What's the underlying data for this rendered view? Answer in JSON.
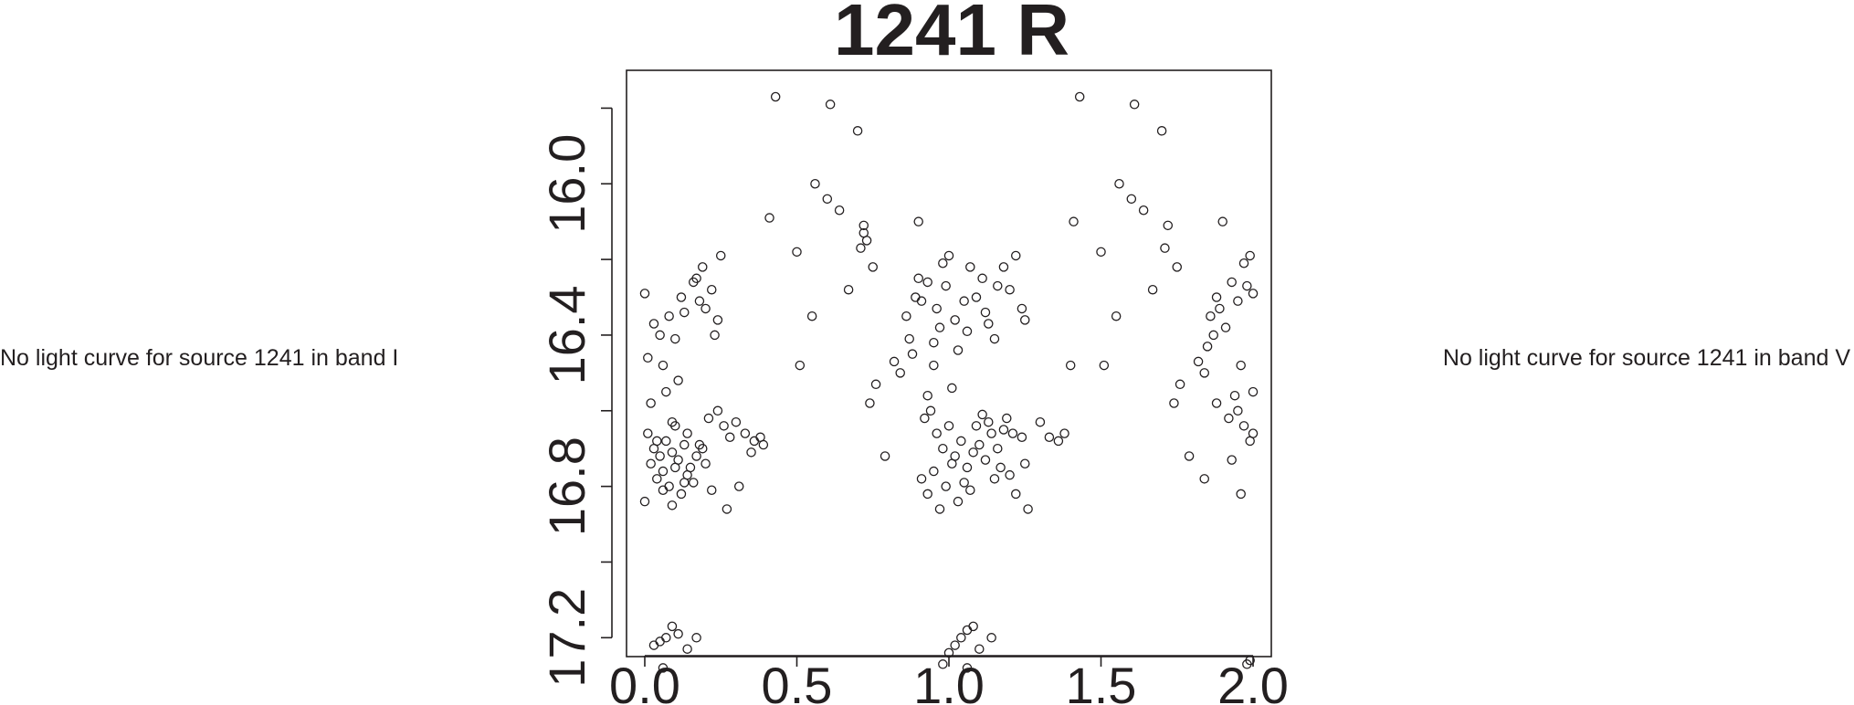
{
  "left_message": "No light curve for source 1241 in band I",
  "right_message": "No light curve for source 1241 in band V",
  "chart_data": {
    "type": "scatter",
    "title": "1241 R",
    "xlabel": "",
    "ylabel": "",
    "xlim": [
      -0.06,
      2.06
    ],
    "ylim": [
      17.25,
      15.7
    ],
    "y_inverted": true,
    "x_ticks": [
      0.0,
      0.5,
      1.0,
      1.5,
      2.0
    ],
    "x_tick_labels": [
      "0.0",
      "0.5",
      "1.0",
      "1.5",
      "2.0"
    ],
    "y_ticks": [
      17.2,
      17.0,
      16.8,
      16.6,
      16.4,
      16.2,
      16.0,
      15.8
    ],
    "y_tick_labels": [
      "17.2",
      "",
      "16.8",
      "",
      "16.4",
      "",
      "16.0",
      ""
    ],
    "marker": "open-circle",
    "grid": false,
    "points": [
      [
        0.0,
        16.29
      ],
      [
        0.03,
        16.37
      ],
      [
        0.06,
        16.48
      ],
      [
        0.1,
        16.41
      ],
      [
        0.13,
        16.34
      ],
      [
        0.16,
        16.26
      ],
      [
        0.19,
        16.22
      ],
      [
        0.22,
        16.28
      ],
      [
        0.25,
        16.19
      ],
      [
        0.01,
        16.46
      ],
      [
        0.05,
        16.4
      ],
      [
        0.08,
        16.35
      ],
      [
        0.12,
        16.3
      ],
      [
        0.17,
        16.25
      ],
      [
        0.2,
        16.33
      ],
      [
        0.24,
        16.36
      ],
      [
        0.02,
        16.58
      ],
      [
        0.07,
        16.55
      ],
      [
        0.11,
        16.52
      ],
      [
        0.18,
        16.31
      ],
      [
        0.23,
        16.4
      ],
      [
        0.04,
        16.68
      ],
      [
        0.09,
        16.63
      ],
      [
        0.14,
        16.66
      ],
      [
        0.21,
        16.62
      ],
      [
        0.26,
        16.64
      ],
      [
        0.3,
        16.63
      ],
      [
        0.33,
        16.66
      ],
      [
        0.36,
        16.68
      ],
      [
        0.38,
        16.67
      ],
      [
        0.01,
        16.66
      ],
      [
        0.03,
        16.7
      ],
      [
        0.05,
        16.72
      ],
      [
        0.07,
        16.68
      ],
      [
        0.09,
        16.71
      ],
      [
        0.11,
        16.73
      ],
      [
        0.13,
        16.69
      ],
      [
        0.15,
        16.75
      ],
      [
        0.17,
        16.72
      ],
      [
        0.02,
        16.74
      ],
      [
        0.04,
        16.78
      ],
      [
        0.06,
        16.76
      ],
      [
        0.08,
        16.8
      ],
      [
        0.1,
        16.75
      ],
      [
        0.12,
        16.82
      ],
      [
        0.14,
        16.77
      ],
      [
        0.16,
        16.79
      ],
      [
        0.19,
        16.7
      ],
      [
        0.06,
        16.81
      ],
      [
        0.09,
        16.85
      ],
      [
        0.13,
        16.79
      ],
      [
        0.2,
        16.74
      ],
      [
        0.22,
        16.81
      ],
      [
        0.27,
        16.86
      ],
      [
        0.31,
        16.8
      ],
      [
        0.39,
        16.69
      ],
      [
        0.1,
        16.64
      ],
      [
        0.18,
        16.69
      ],
      [
        0.24,
        16.6
      ],
      [
        0.28,
        16.67
      ],
      [
        0.35,
        16.71
      ],
      [
        0.0,
        16.84
      ],
      [
        0.03,
        17.22
      ],
      [
        0.05,
        17.21
      ],
      [
        0.07,
        17.2
      ],
      [
        0.09,
        17.17
      ],
      [
        0.11,
        17.19
      ],
      [
        0.14,
        17.23
      ],
      [
        0.17,
        17.2
      ],
      [
        0.06,
        17.28
      ],
      [
        0.41,
        16.09
      ],
      [
        0.43,
        15.77
      ],
      [
        0.5,
        16.18
      ],
      [
        0.51,
        16.48
      ],
      [
        0.55,
        16.35
      ],
      [
        0.56,
        16.0
      ],
      [
        0.6,
        16.04
      ],
      [
        0.61,
        15.79
      ],
      [
        0.64,
        16.07
      ],
      [
        0.67,
        16.28
      ],
      [
        0.7,
        15.86
      ],
      [
        0.71,
        16.17
      ],
      [
        0.72,
        16.11
      ],
      [
        0.72,
        16.13
      ],
      [
        0.73,
        16.15
      ],
      [
        0.74,
        16.58
      ],
      [
        0.75,
        16.22
      ],
      [
        0.76,
        16.53
      ],
      [
        0.79,
        16.72
      ],
      [
        0.82,
        16.47
      ],
      [
        0.84,
        16.5
      ],
      [
        0.86,
        16.35
      ],
      [
        0.87,
        16.41
      ],
      [
        0.89,
        16.3
      ],
      [
        0.9,
        16.25
      ],
      [
        0.92,
        16.62
      ],
      [
        0.95,
        16.42
      ],
      [
        0.88,
        16.45
      ],
      [
        0.91,
        16.31
      ],
      [
        0.93,
        16.26
      ],
      [
        0.96,
        16.33
      ],
      [
        0.98,
        16.21
      ],
      [
        1.0,
        16.19
      ],
      [
        1.02,
        16.36
      ],
      [
        1.05,
        16.31
      ],
      [
        1.07,
        16.22
      ],
      [
        0.93,
        16.56
      ],
      [
        0.95,
        16.48
      ],
      [
        0.97,
        16.38
      ],
      [
        0.99,
        16.27
      ],
      [
        1.01,
        16.54
      ],
      [
        1.03,
        16.44
      ],
      [
        1.06,
        16.39
      ],
      [
        1.09,
        16.3
      ],
      [
        1.11,
        16.25
      ],
      [
        0.9,
        16.1
      ],
      [
        0.94,
        16.6
      ],
      [
        0.96,
        16.66
      ],
      [
        0.98,
        16.7
      ],
      [
        1.0,
        16.64
      ],
      [
        1.02,
        16.72
      ],
      [
        1.04,
        16.68
      ],
      [
        1.06,
        16.75
      ],
      [
        1.08,
        16.71
      ],
      [
        0.91,
        16.78
      ],
      [
        0.93,
        16.82
      ],
      [
        0.95,
        16.76
      ],
      [
        0.97,
        16.86
      ],
      [
        0.99,
        16.8
      ],
      [
        1.01,
        16.74
      ],
      [
        1.03,
        16.84
      ],
      [
        1.05,
        16.79
      ],
      [
        1.07,
        16.81
      ],
      [
        1.1,
        16.69
      ],
      [
        1.12,
        16.73
      ],
      [
        1.14,
        16.66
      ],
      [
        1.16,
        16.7
      ],
      [
        1.18,
        16.65
      ],
      [
        1.2,
        16.77
      ],
      [
        1.22,
        16.82
      ],
      [
        1.24,
        16.67
      ],
      [
        1.26,
        16.86
      ],
      [
        1.09,
        16.64
      ],
      [
        1.11,
        16.61
      ],
      [
        1.13,
        16.63
      ],
      [
        1.15,
        16.78
      ],
      [
        1.17,
        16.75
      ],
      [
        1.19,
        16.62
      ],
      [
        1.21,
        16.66
      ],
      [
        1.25,
        16.74
      ],
      [
        1.3,
        16.63
      ],
      [
        1.13,
        16.37
      ],
      [
        1.16,
        16.27
      ],
      [
        1.18,
        16.22
      ],
      [
        1.2,
        16.28
      ],
      [
        1.22,
        16.19
      ],
      [
        1.24,
        16.33
      ],
      [
        1.25,
        16.36
      ],
      [
        1.15,
        16.41
      ],
      [
        1.12,
        16.34
      ],
      [
        1.33,
        16.67
      ],
      [
        1.36,
        16.68
      ],
      [
        1.38,
        16.66
      ],
      [
        1.4,
        16.48
      ],
      [
        1.41,
        16.1
      ],
      [
        1.43,
        15.77
      ],
      [
        1.5,
        16.18
      ],
      [
        1.51,
        16.48
      ],
      [
        1.55,
        16.35
      ],
      [
        1.56,
        16.0
      ],
      [
        1.6,
        16.04
      ],
      [
        1.61,
        15.79
      ],
      [
        1.64,
        16.07
      ],
      [
        1.67,
        16.28
      ],
      [
        1.7,
        15.86
      ],
      [
        1.71,
        16.17
      ],
      [
        1.72,
        16.11
      ],
      [
        1.74,
        16.58
      ],
      [
        1.75,
        16.22
      ],
      [
        1.76,
        16.53
      ],
      [
        1.79,
        16.72
      ],
      [
        1.82,
        16.47
      ],
      [
        1.84,
        16.5
      ],
      [
        1.86,
        16.35
      ],
      [
        1.88,
        16.3
      ],
      [
        1.9,
        16.1
      ],
      [
        1.92,
        16.62
      ],
      [
        1.85,
        16.43
      ],
      [
        1.87,
        16.4
      ],
      [
        1.89,
        16.33
      ],
      [
        1.91,
        16.38
      ],
      [
        1.93,
        16.26
      ],
      [
        1.95,
        16.31
      ],
      [
        1.97,
        16.21
      ],
      [
        1.99,
        16.19
      ],
      [
        2.0,
        16.29
      ],
      [
        1.94,
        16.56
      ],
      [
        1.96,
        16.48
      ],
      [
        1.98,
        16.27
      ],
      [
        2.0,
        16.55
      ],
      [
        1.95,
        16.6
      ],
      [
        1.97,
        16.64
      ],
      [
        1.99,
        16.68
      ],
      [
        2.0,
        16.66
      ],
      [
        1.96,
        16.82
      ],
      [
        0.98,
        17.27
      ],
      [
        1.0,
        17.24
      ],
      [
        1.02,
        17.22
      ],
      [
        1.04,
        17.2
      ],
      [
        1.06,
        17.18
      ],
      [
        1.08,
        17.17
      ],
      [
        1.1,
        17.23
      ],
      [
        1.14,
        17.2
      ],
      [
        1.06,
        17.28
      ],
      [
        1.99,
        17.26
      ],
      [
        1.98,
        17.27
      ],
      [
        1.93,
        16.73
      ],
      [
        1.88,
        16.58
      ],
      [
        1.84,
        16.78
      ]
    ]
  }
}
